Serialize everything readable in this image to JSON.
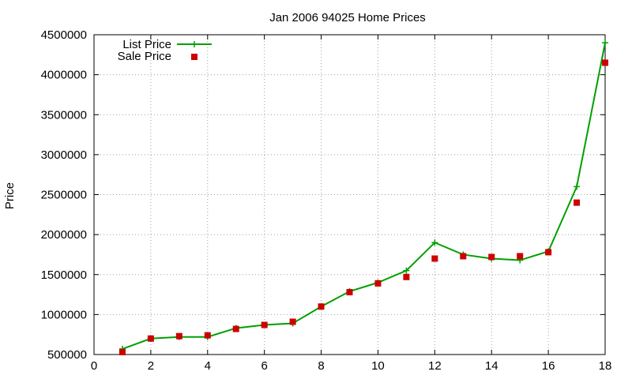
{
  "chart_data": {
    "type": "line",
    "title": "Jan 2006 94025 Home Prices",
    "xlabel": "",
    "ylabel": "Price",
    "xlim": [
      0,
      18
    ],
    "ylim": [
      500000,
      4500000
    ],
    "xticks": [
      0,
      2,
      4,
      6,
      8,
      10,
      12,
      14,
      16,
      18
    ],
    "yticks": [
      500000,
      1000000,
      1500000,
      2000000,
      2500000,
      3000000,
      3500000,
      4000000,
      4500000
    ],
    "grid": true,
    "legend_position": "top-left",
    "x": [
      1,
      2,
      3,
      4,
      5,
      6,
      7,
      8,
      9,
      10,
      11,
      12,
      13,
      14,
      15,
      16,
      17,
      18
    ],
    "series": [
      {
        "name": "List Price",
        "style": "line-with-plus-markers",
        "color": "#00a000",
        "values": [
          570000,
          700000,
          720000,
          720000,
          830000,
          870000,
          890000,
          1100000,
          1290000,
          1400000,
          1550000,
          1900000,
          1750000,
          1700000,
          1680000,
          1790000,
          2600000,
          4400000
        ]
      },
      {
        "name": "Sale Price",
        "style": "square-markers",
        "color": "#cc0000",
        "values": [
          530000,
          700000,
          730000,
          740000,
          820000,
          870000,
          910000,
          1100000,
          1280000,
          1390000,
          1470000,
          1700000,
          1730000,
          1720000,
          1730000,
          1780000,
          2400000,
          4150000
        ]
      }
    ]
  }
}
